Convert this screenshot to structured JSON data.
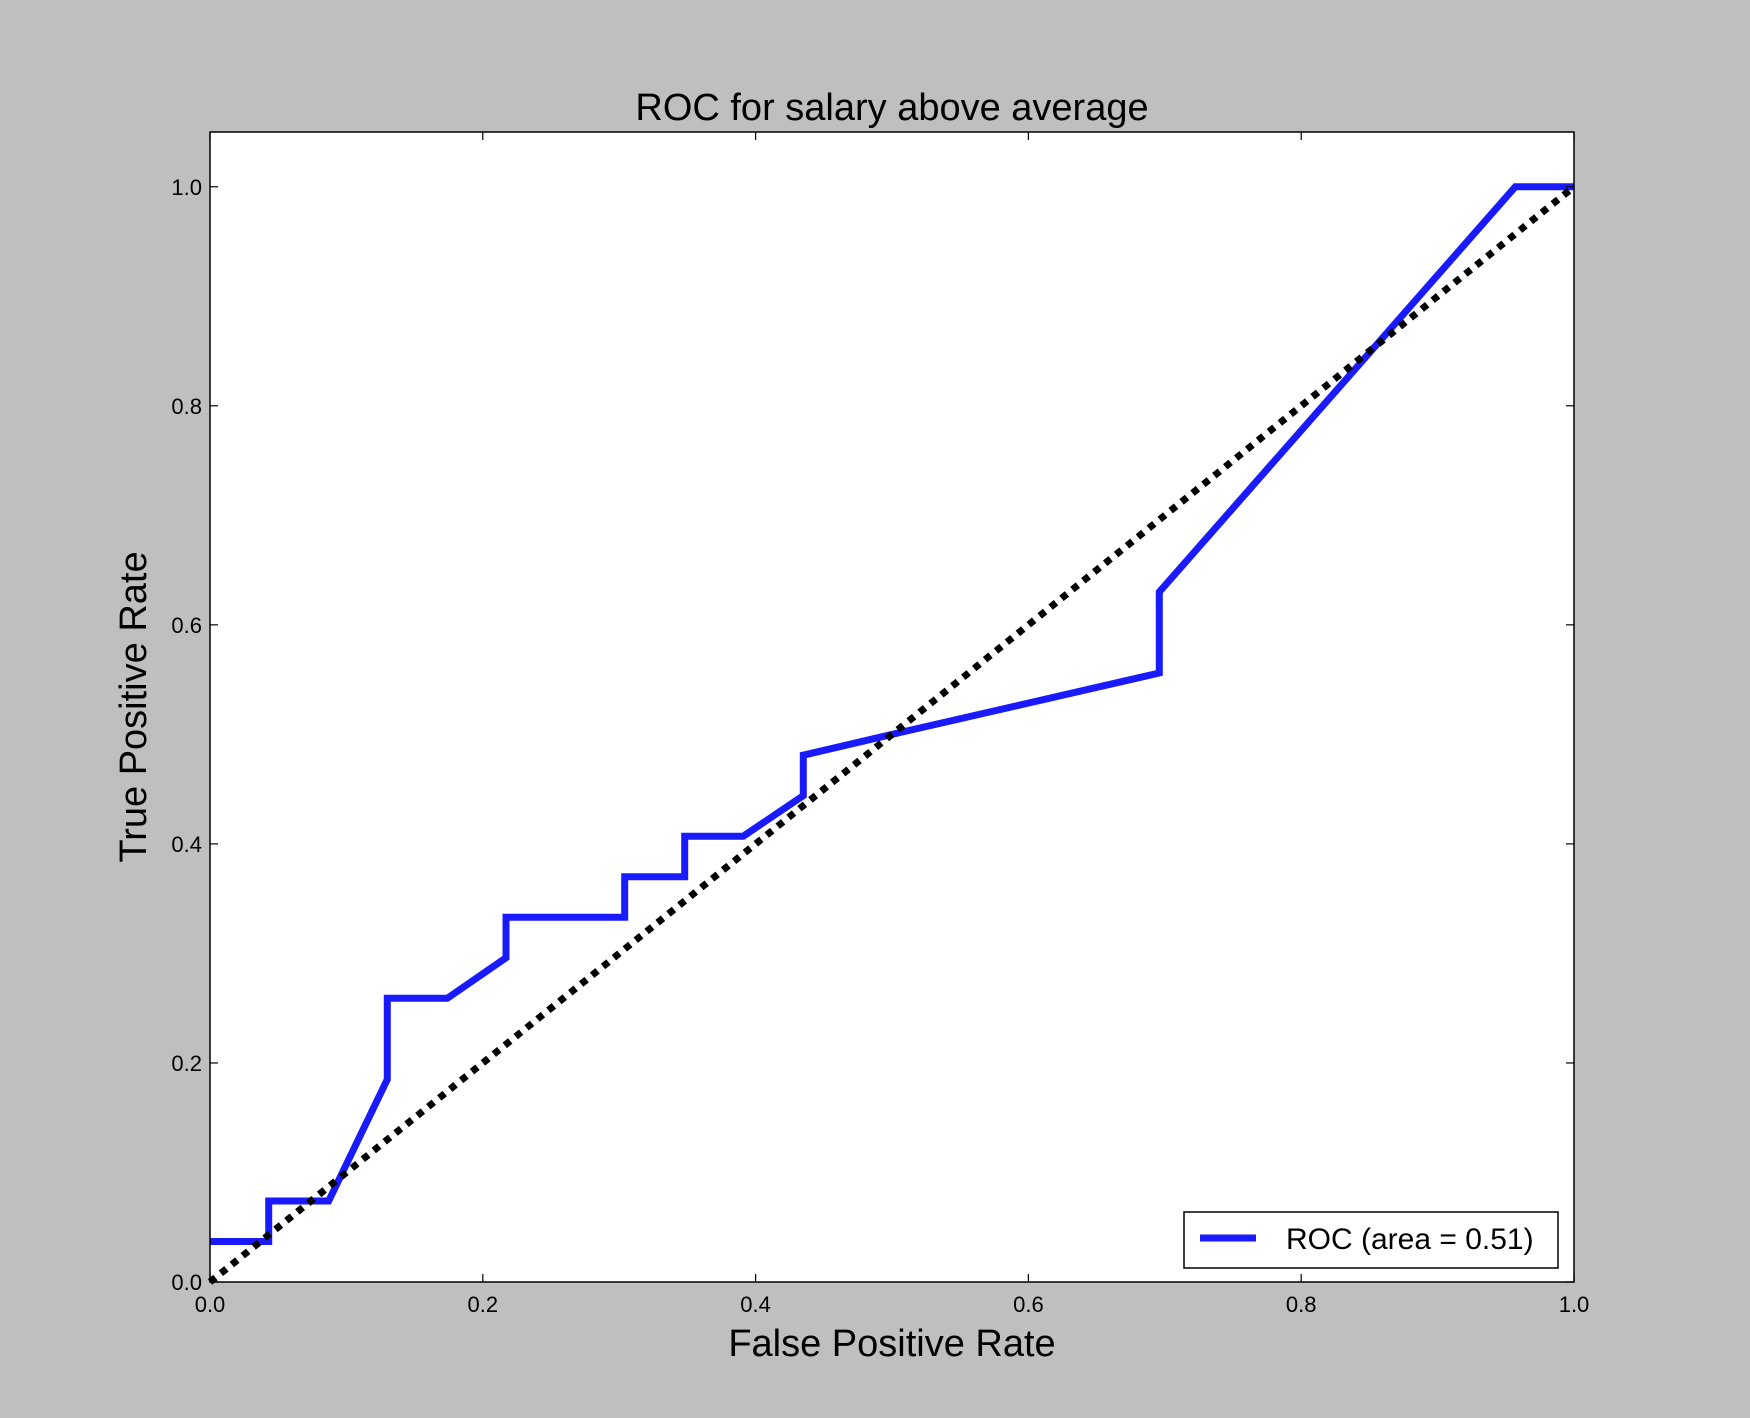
{
  "chart_data": {
    "type": "line",
    "title": "ROC for salary above average",
    "xlabel": "False Positive Rate",
    "ylabel": "True Positive Rate",
    "xlim": [
      0.0,
      1.0
    ],
    "ylim": [
      0.0,
      1.05
    ],
    "xticks": [
      "0.0",
      "0.2",
      "0.4",
      "0.6",
      "0.8",
      "1.0"
    ],
    "yticks": [
      "0.0",
      "0.2",
      "0.4",
      "0.6",
      "0.8",
      "1.0"
    ],
    "xtick_values": [
      0.0,
      0.2,
      0.4,
      0.6,
      0.8,
      1.0
    ],
    "ytick_values": [
      0.0,
      0.2,
      0.4,
      0.6,
      0.8,
      1.0
    ],
    "grid": false,
    "legend_position": "lower-right",
    "series": [
      {
        "name": "ROC (area = 0.51)",
        "color": "#1a1aff",
        "style": "solid",
        "x": [
          0.0,
          0.043,
          0.043,
          0.087,
          0.13,
          0.13,
          0.174,
          0.217,
          0.217,
          0.304,
          0.304,
          0.348,
          0.348,
          0.391,
          0.435,
          0.435,
          0.5,
          0.696,
          0.696,
          0.957,
          1.0
        ],
        "y": [
          0.037,
          0.037,
          0.074,
          0.074,
          0.185,
          0.259,
          0.259,
          0.296,
          0.333,
          0.333,
          0.37,
          0.37,
          0.407,
          0.407,
          0.444,
          0.481,
          0.5,
          0.556,
          0.63,
          1.0,
          1.0
        ]
      },
      {
        "name": "",
        "color": "#000000",
        "style": "dotted",
        "x": [
          0.0,
          1.0
        ],
        "y": [
          0.0,
          1.0
        ]
      }
    ]
  }
}
